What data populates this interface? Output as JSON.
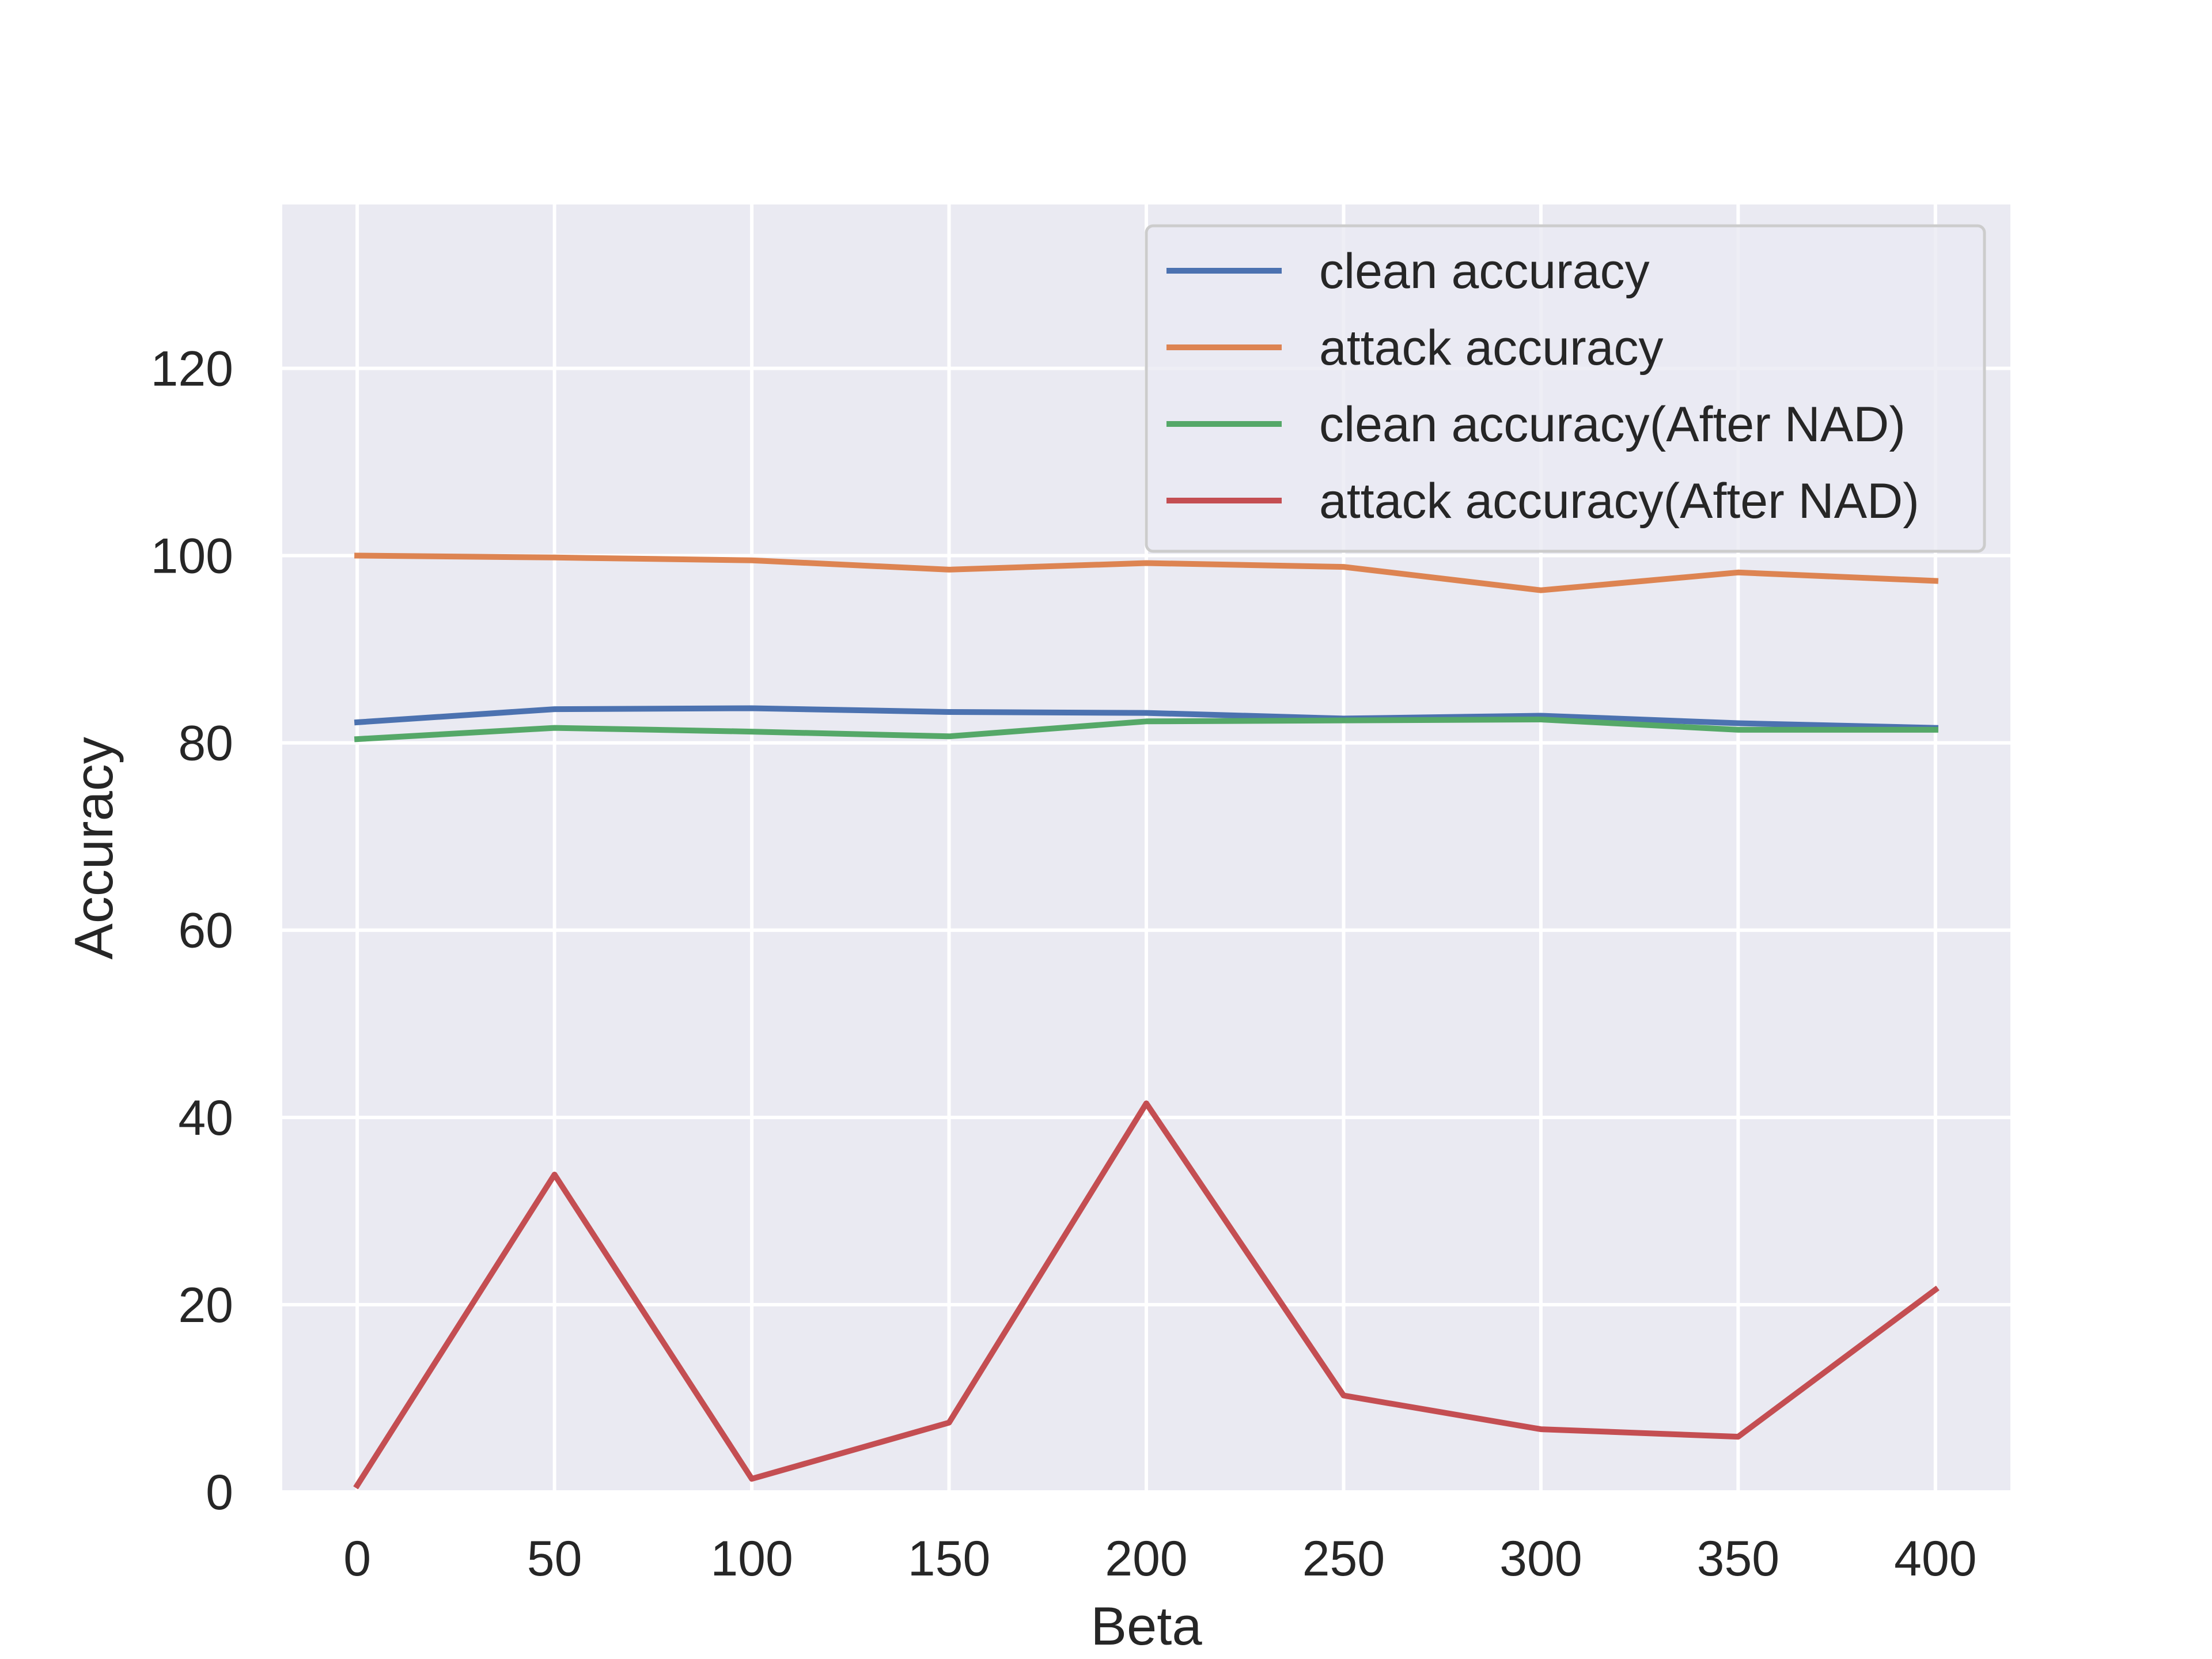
{
  "chart_data": {
    "type": "line",
    "title": "",
    "xlabel": "Beta",
    "ylabel": "Accuracy",
    "x": [
      0,
      50,
      100,
      150,
      200,
      250,
      300,
      350,
      400
    ],
    "xticks": [
      0,
      50,
      100,
      150,
      200,
      250,
      300,
      350,
      400
    ],
    "yticks": [
      0,
      20,
      40,
      60,
      80,
      100,
      120
    ],
    "xlim": [
      -19,
      419
    ],
    "ylim": [
      0,
      137.5
    ],
    "grid": true,
    "legend_position": "top-right",
    "colors": {
      "background": "#eaeaf2",
      "grid": "#ffffff",
      "text": "#262626"
    },
    "series": [
      {
        "name": "clean accuracy",
        "color": "#4c72b0",
        "values": [
          82.2,
          83.6,
          83.7,
          83.3,
          83.2,
          82.6,
          82.9,
          82.1,
          81.6
        ]
      },
      {
        "name": "attack accuracy",
        "color": "#dd8452",
        "values": [
          100.0,
          99.8,
          99.5,
          98.5,
          99.2,
          98.8,
          96.3,
          98.2,
          97.3
        ]
      },
      {
        "name": "clean accuracy(After NAD)",
        "color": "#55a868",
        "values": [
          80.4,
          81.6,
          81.2,
          80.7,
          82.3,
          82.4,
          82.5,
          81.4,
          81.4
        ]
      },
      {
        "name": "attack accuracy(After NAD)",
        "color": "#c44e52",
        "values": [
          0.7,
          33.9,
          1.4,
          7.4,
          41.5,
          10.3,
          6.7,
          5.9,
          21.6
        ]
      }
    ]
  }
}
